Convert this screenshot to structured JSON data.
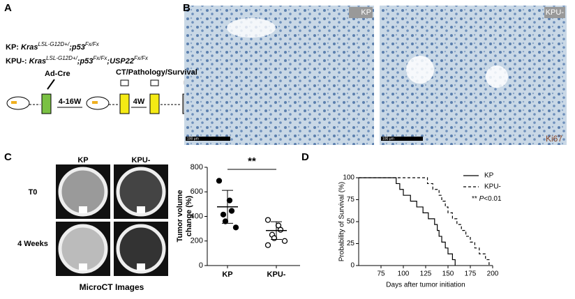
{
  "panel_a": {
    "label": "A",
    "genotypes": [
      {
        "name": "KP:",
        "parts": [
          {
            "text": "Kras",
            "sup": "LSL-G12D+/"
          },
          {
            "text": ";p53",
            "sup": "Fx/Fx"
          }
        ]
      },
      {
        "name": "KPU-:",
        "parts": [
          {
            "text": "Kras",
            "sup": "LSL-G12D+/"
          },
          {
            "text": ";p53",
            "sup": "Fx/Fx"
          },
          {
            "text": ";USP22",
            "sup": "Fx/Fx"
          }
        ]
      }
    ],
    "step1": "Ad-Cre",
    "step2": "CT/Pathology/Survival",
    "interval1": "4-16W",
    "interval2": "4W"
  },
  "panel_b": {
    "label": "B",
    "images": [
      {
        "title": "KP",
        "scale": "100 μm"
      },
      {
        "title": "KPU-",
        "scale": "100 μm",
        "stain": "Ki67"
      }
    ]
  },
  "panel_c": {
    "label": "C",
    "columns": [
      "KP",
      "KPU-"
    ],
    "rows": [
      "T0",
      "4 Weeks"
    ],
    "caption": "MicroCT Images"
  },
  "panel_d": {
    "label": "D"
  },
  "chart_data": [
    {
      "type": "dotplot",
      "ylabel": [
        "Tumor volume",
        "change (%)"
      ],
      "categories": [
        "KP",
        "KPU-"
      ],
      "groups": [
        {
          "values": [
            690,
            530,
            445,
            415,
            360,
            310
          ],
          "mean": 478,
          "sd": 134,
          "marker": "filled"
        },
        {
          "values": [
            371,
            326,
            291,
            251,
            223,
            200,
            166
          ],
          "mean": 285,
          "sd": 72,
          "marker": "open"
        }
      ],
      "significance": "**",
      "ylim": [
        0,
        800
      ],
      "yticks": [
        0,
        200,
        400,
        600,
        800
      ],
      "color": "#000000"
    },
    {
      "type": "survival",
      "ylabel": "Probability of Survival (%)",
      "xlabel": "Days after tumor initiation",
      "series": [
        {
          "name": "KP",
          "dash": "solid",
          "color": "#000000",
          "x": [
            50,
            92,
            96,
            100,
            108,
            115,
            122,
            128,
            135,
            138,
            140,
            143,
            147,
            150,
            155,
            158
          ],
          "values": [
            100,
            93.3,
            86.7,
            80,
            73.3,
            66.7,
            60,
            53.3,
            46.7,
            40,
            33.3,
            26.7,
            20,
            13.3,
            6.7,
            0
          ]
        },
        {
          "name": "KPU-",
          "dash": "dashed",
          "color": "#000000",
          "x": [
            50,
            127,
            133,
            140,
            143,
            147,
            150,
            155,
            160,
            165,
            170,
            175,
            180,
            185,
            192,
            196
          ],
          "values": [
            100,
            93.3,
            86.7,
            80,
            73.3,
            66.7,
            60,
            53.3,
            46.7,
            40,
            33.3,
            26.7,
            20,
            13.3,
            6.7,
            0
          ]
        }
      ],
      "annotation": {
        "stars": "**",
        "p": "P",
        "rest": "<0.01"
      },
      "xlim": [
        50,
        200
      ],
      "xticks": [
        75,
        100,
        125,
        150,
        175,
        200
      ],
      "ylim": [
        0,
        100
      ],
      "yticks": [
        0,
        25,
        50,
        75,
        100
      ]
    }
  ]
}
